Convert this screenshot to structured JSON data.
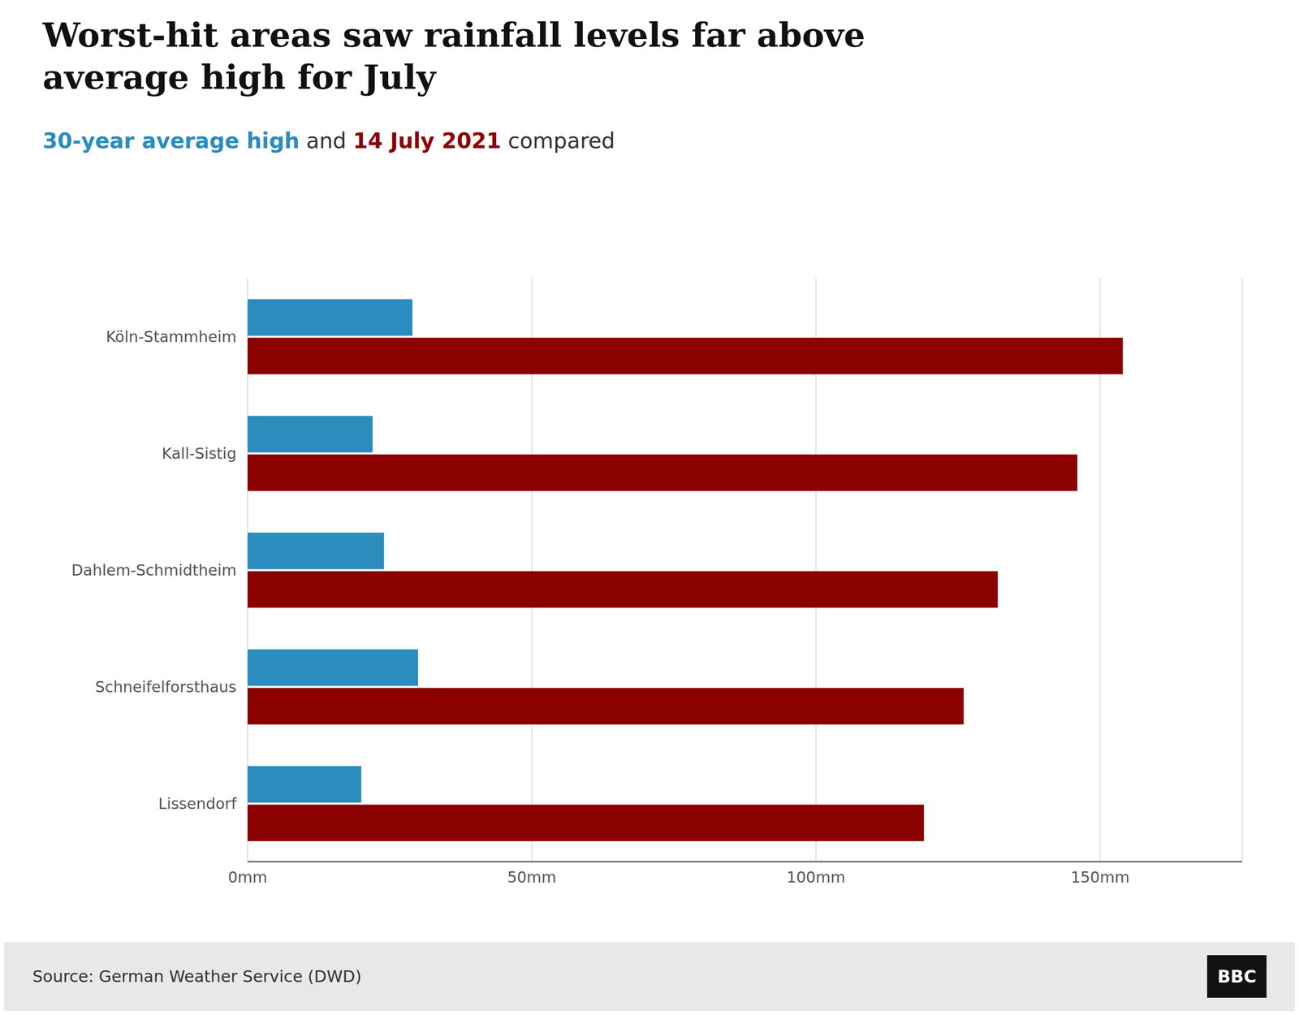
{
  "chart_data": {
    "type": "bar",
    "orientation": "horizontal",
    "title": "Worst-hit areas saw rainfall levels far above\naverage high for July",
    "subtitle": "30-year average high and 14 July 2021 compared",
    "categories": [
      "Köln-Stammheim",
      "Kall-Sistig",
      "Dahlem-Schmidtheim",
      "Schneifelforsthaus",
      "Lissendorf"
    ],
    "series": [
      {
        "name": "30-year average high",
        "color": "#2b8cbe",
        "values": [
          29,
          22,
          24,
          30,
          20
        ]
      },
      {
        "name": "14 July 2021",
        "color": "#8b0000",
        "values": [
          154,
          146,
          132,
          126,
          119
        ]
      }
    ],
    "xlim": [
      0,
      175
    ],
    "xticks": [
      {
        "value": 0,
        "label": "0mm"
      },
      {
        "value": 50,
        "label": "50mm"
      },
      {
        "value": 100,
        "label": "100mm"
      },
      {
        "value": 150,
        "label": "150mm"
      }
    ],
    "grid": true,
    "source": "Source: German Weather Service (DWD)",
    "annotations": [
      "BBC"
    ]
  }
}
